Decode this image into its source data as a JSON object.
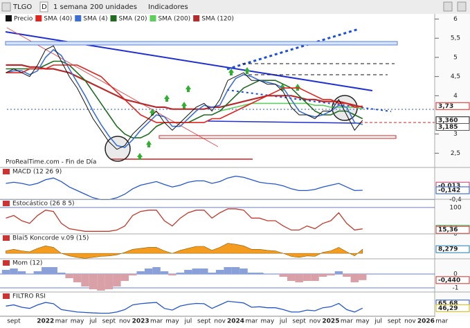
{
  "toolbar": {
    "symbol": "TLGO",
    "mode": "D",
    "period": "1 semana",
    "units": "200 unidades",
    "indicators": "Indicadores"
  },
  "chart_data": [
    {
      "type": "line",
      "source": "ProRealTime.com - Fin de Día",
      "categories": [
        null,
        "sept",
        null,
        null,
        null,
        "2022",
        null,
        "mar",
        null,
        "may",
        null,
        "jul",
        null,
        "sept",
        null,
        "nov",
        null,
        "2023",
        null,
        "mar",
        null,
        "may",
        null,
        "jul",
        null,
        "sept",
        null,
        "nov",
        null,
        "2024",
        null,
        "mar",
        null,
        "may",
        null,
        "jul",
        null,
        "sept",
        null,
        "nov",
        null,
        "2025",
        null,
        "mar",
        null,
        "may",
        null,
        "jul",
        null,
        "sept",
        null,
        "nov",
        null,
        "2026",
        null,
        "mar"
      ],
      "series": [
        {
          "name": "Precio",
          "color": "#111111",
          "values": [
            4.6,
            4.7,
            4.6,
            4.5,
            4.8,
            5.2,
            5.3,
            4.9,
            4.5,
            4.2,
            3.8,
            3.4,
            3.1,
            2.8,
            2.6,
            2.7,
            3.0,
            3.2,
            3.4,
            3.6,
            3.3,
            3.1,
            3.3,
            3.5,
            3.7,
            3.8,
            3.6,
            3.9,
            4.4,
            4.5,
            4.6,
            4.4,
            4.4,
            4.3,
            4.3,
            4.1,
            3.7,
            3.5,
            3.5,
            3.4,
            3.6,
            3.6,
            3.9,
            3.5,
            3.1,
            3.36,
            null,
            null,
            null,
            null,
            null,
            null,
            null,
            null,
            null,
            null
          ]
        },
        {
          "name": "SMA (40)",
          "color": "#e0231c",
          "values": [
            4.6,
            4.6,
            4.6,
            4.7,
            4.7,
            4.7,
            4.8,
            4.8,
            4.8,
            4.8,
            4.7,
            4.6,
            4.5,
            4.3,
            4.1,
            3.9,
            3.7,
            3.5,
            3.4,
            3.3,
            3.3,
            3.3,
            3.3,
            3.3,
            3.3,
            3.3,
            3.4,
            3.4,
            3.5,
            3.6,
            3.7,
            3.8,
            3.9,
            4.0,
            4.1,
            4.2,
            4.2,
            4.2,
            4.1,
            4.0,
            3.9,
            3.9,
            3.8,
            3.8,
            3.7,
            3.73,
            null,
            null,
            null,
            null,
            null,
            null,
            null,
            null,
            null,
            null
          ]
        },
        {
          "name": "SMA (4)",
          "color": "#3b6fd4",
          "values": [
            4.6,
            4.65,
            4.65,
            4.55,
            4.65,
            5.0,
            5.2,
            5.05,
            4.7,
            4.35,
            4.0,
            3.6,
            3.25,
            2.95,
            2.7,
            2.65,
            2.85,
            3.1,
            3.3,
            3.5,
            3.45,
            3.2,
            3.2,
            3.4,
            3.6,
            3.75,
            3.7,
            3.75,
            4.15,
            4.45,
            4.55,
            4.5,
            4.4,
            4.35,
            4.3,
            4.2,
            3.9,
            3.6,
            3.5,
            3.45,
            3.5,
            3.6,
            3.75,
            3.7,
            3.3,
            3.25,
            null,
            null,
            null,
            null,
            null,
            null,
            null,
            null,
            null,
            null
          ]
        },
        {
          "name": "SMA (20)",
          "color": "#1f6b1f",
          "values": [
            4.7,
            4.7,
            4.7,
            4.7,
            4.7,
            4.8,
            4.9,
            4.9,
            4.8,
            4.6,
            4.4,
            4.1,
            3.8,
            3.5,
            3.2,
            3.0,
            2.9,
            2.9,
            3.0,
            3.2,
            3.3,
            3.3,
            3.3,
            3.3,
            3.4,
            3.5,
            3.5,
            3.6,
            3.8,
            4.0,
            4.2,
            4.3,
            4.4,
            4.4,
            4.4,
            4.3,
            4.2,
            4.0,
            3.8,
            3.6,
            3.5,
            3.5,
            3.6,
            3.6,
            3.5,
            3.4,
            null,
            null,
            null,
            null,
            null,
            null,
            null,
            null,
            null,
            null
          ]
        },
        {
          "name": "SMA (200)",
          "color": "#5ccf5c",
          "values": [
            null,
            null,
            null,
            null,
            null,
            null,
            null,
            null,
            null,
            null,
            null,
            null,
            null,
            null,
            null,
            null,
            null,
            null,
            null,
            null,
            null,
            null,
            null,
            null,
            null,
            null,
            null,
            3.6,
            3.65,
            3.7,
            3.75,
            3.8,
            3.8,
            3.8,
            3.8,
            3.8,
            3.8,
            3.8,
            3.8,
            3.75,
            3.75,
            3.7,
            3.7,
            3.7,
            3.7,
            3.65,
            null,
            null,
            null,
            null,
            null,
            null,
            null,
            null,
            null,
            null
          ]
        },
        {
          "name": "SMA (120)",
          "color": "#b52a2a",
          "values": [
            4.8,
            4.8,
            4.8,
            4.75,
            4.75,
            4.7,
            4.7,
            4.65,
            4.6,
            4.5,
            4.4,
            4.3,
            4.2,
            4.1,
            4.0,
            3.9,
            3.85,
            3.8,
            3.75,
            3.7,
            3.7,
            3.65,
            3.65,
            3.65,
            3.65,
            3.65,
            3.7,
            3.7,
            3.75,
            3.8,
            3.85,
            3.9,
            3.95,
            4.0,
            4.0,
            4.0,
            4.0,
            3.95,
            3.9,
            3.9,
            3.85,
            3.85,
            3.85,
            3.8,
            3.75,
            3.7,
            null,
            null,
            null,
            null,
            null,
            null,
            null,
            null,
            null,
            null
          ]
        }
      ],
      "ylim": [
        2.2,
        6.1
      ],
      "yticks": [
        6,
        {
          "value": 5.5,
          "label": "5,5"
        },
        5,
        {
          "value": 4.5,
          "label": "4,5"
        },
        4,
        3,
        {
          "value": 2.5,
          "label": "2,5"
        }
      ],
      "grid": false,
      "right_labels": [
        {
          "value": 3.73,
          "label": "3,73",
          "color": "#e0231c"
        },
        {
          "value": 3.36,
          "label": "3,360",
          "color": "#111111"
        },
        {
          "value": 3.185,
          "label": "3,185",
          "color": "#555555"
        }
      ]
    },
    {
      "type": "line",
      "title": "MACD (12 26 9)",
      "color": "#2255cc",
      "values": [
        0.05,
        0.08,
        0.05,
        0,
        0.05,
        0.15,
        0.2,
        0.1,
        -0.05,
        -0.15,
        -0.25,
        -0.35,
        -0.4,
        -0.4,
        -0.35,
        -0.25,
        -0.1,
        0,
        0.05,
        0.1,
        0.02,
        -0.05,
        0,
        0.08,
        0.12,
        0.12,
        0.05,
        0.1,
        0.2,
        0.25,
        0.22,
        0.15,
        0.08,
        0.05,
        0.03,
        -0.02,
        -0.1,
        -0.15,
        -0.15,
        -0.12,
        -0.05,
        0,
        0.05,
        -0.05,
        -0.15,
        -0.142,
        null,
        null,
        null,
        null,
        null,
        null,
        null,
        null,
        null,
        null
      ],
      "ylim": [
        -0.45,
        0.3
      ],
      "yticks": [
        {
          "value": -0.4,
          "label": "-0,4"
        }
      ],
      "right_labels": [
        {
          "value": -0.013,
          "label": "-0,013",
          "color": "#d03a6a"
        },
        {
          "value": -0.142,
          "label": "-0,142",
          "color": "#2255cc"
        }
      ]
    },
    {
      "type": "line",
      "title": "Estocástico (26 8 5)",
      "color": "#c0392b",
      "values": [
        60,
        70,
        50,
        40,
        70,
        90,
        85,
        40,
        20,
        15,
        10,
        10,
        10,
        10,
        15,
        30,
        70,
        85,
        90,
        90,
        50,
        30,
        60,
        80,
        90,
        90,
        60,
        80,
        95,
        95,
        90,
        60,
        60,
        50,
        50,
        30,
        15,
        15,
        30,
        20,
        40,
        50,
        80,
        40,
        15,
        19.24,
        null,
        null,
        null,
        null,
        null,
        null,
        null,
        null,
        null,
        null
      ],
      "ylim": [
        -5,
        105
      ],
      "yticks": [
        100,
        0
      ],
      "right_labels": [
        {
          "value": 19.24,
          "label": "19,24",
          "color": "#2a9a3a"
        },
        {
          "value": 15.36,
          "label": "15,36",
          "color": "#c0392b"
        }
      ]
    },
    {
      "type": "area",
      "title": "Blai5 Koncorde v.09 (15)",
      "color": "#f39c1f",
      "values": [
        5,
        8,
        5,
        3,
        10,
        15,
        12,
        0,
        -5,
        -8,
        -10,
        -8,
        -6,
        -5,
        -3,
        2,
        8,
        10,
        12,
        12,
        5,
        0,
        6,
        10,
        14,
        14,
        6,
        12,
        20,
        18,
        15,
        8,
        8,
        6,
        5,
        0,
        -6,
        -8,
        -5,
        -6,
        2,
        5,
        12,
        3,
        -5,
        8.279,
        null,
        null,
        null,
        null,
        null,
        null,
        null,
        null,
        null,
        null
      ],
      "ylim": [
        -15,
        25
      ],
      "yticks": [],
      "right_labels": [
        {
          "value": 8.279,
          "label": "8,279",
          "color": "#1a7fb0"
        }
      ]
    },
    {
      "type": "bar",
      "title": "Mom (12)",
      "color": "#8aa0d8",
      "color_down": "#d9a0a8",
      "values": [
        0.3,
        0.4,
        0.2,
        0,
        0.2,
        0.5,
        0.5,
        0.1,
        -0.3,
        -0.6,
        -0.9,
        -1.1,
        -1.2,
        -1.1,
        -0.9,
        -0.5,
        -0.1,
        0.2,
        0.4,
        0.5,
        0.2,
        -0.1,
        0.1,
        0.3,
        0.4,
        0.4,
        0.1,
        0.3,
        0.5,
        0.5,
        0.4,
        0.1,
        0.1,
        0,
        0,
        -0.2,
        -0.5,
        -0.6,
        -0.5,
        -0.5,
        -0.2,
        -0.1,
        0.2,
        -0.2,
        -0.6,
        -0.44,
        null,
        null,
        null,
        null,
        null,
        null,
        null,
        null,
        null,
        null
      ],
      "ylim": [
        -1.3,
        0.6
      ],
      "yticks": [
        0,
        -1
      ],
      "right_labels": [
        {
          "value": -0.44,
          "label": "-0,440",
          "color": "#d0302a"
        }
      ]
    },
    {
      "type": "line",
      "title": "FILTRO RSI",
      "color": "#2255cc",
      "values": [
        55,
        60,
        50,
        45,
        60,
        70,
        65,
        40,
        35,
        30,
        28,
        26,
        25,
        25,
        30,
        40,
        60,
        65,
        68,
        70,
        45,
        38,
        55,
        62,
        66,
        65,
        45,
        60,
        75,
        72,
        68,
        50,
        52,
        48,
        48,
        40,
        30,
        30,
        38,
        35,
        48,
        52,
        66,
        40,
        30,
        46.29,
        null,
        null,
        null,
        null,
        null,
        null,
        null,
        null,
        null,
        null
      ],
      "ylim": [
        15,
        85
      ],
      "yticks": [],
      "right_labels": [
        {
          "value": 65.68,
          "label": "65,68",
          "color": "#2255cc"
        },
        {
          "value": 46.29,
          "label": "46,29",
          "color": "#d4b800"
        }
      ]
    }
  ]
}
